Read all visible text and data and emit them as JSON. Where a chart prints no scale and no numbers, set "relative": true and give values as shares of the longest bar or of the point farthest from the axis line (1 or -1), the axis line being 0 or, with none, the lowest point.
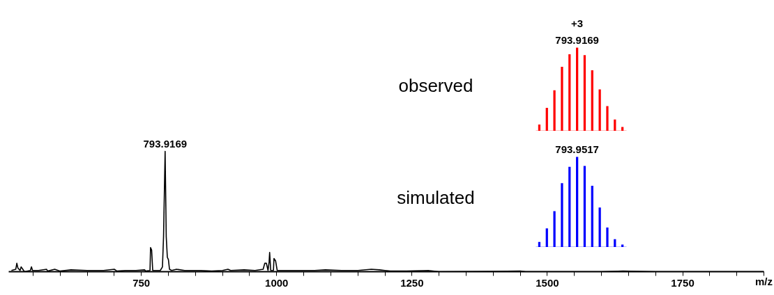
{
  "chart_data": [
    {
      "type": "line",
      "relative": true,
      "xlabel": "m/z",
      "xlim": [
        505,
        1900
      ],
      "xticks": [
        {
          "value": 550,
          "label": null
        },
        {
          "value": 600,
          "label": null
        },
        {
          "value": 650,
          "label": null
        },
        {
          "value": 700,
          "label": null
        },
        750,
        {
          "value": 800,
          "label": null
        },
        {
          "value": 850,
          "label": null
        },
        {
          "value": 900,
          "label": null
        },
        {
          "value": 950,
          "label": null
        },
        1000,
        {
          "value": 1050,
          "label": null
        },
        {
          "value": 1100,
          "label": null
        },
        {
          "value": 1150,
          "label": null
        },
        {
          "value": 1200,
          "label": null
        },
        1250,
        {
          "value": 1300,
          "label": null
        },
        {
          "value": 1350,
          "label": null
        },
        {
          "value": 1400,
          "label": null
        },
        {
          "value": 1450,
          "label": null
        },
        1500,
        {
          "value": 1550,
          "label": null
        },
        {
          "value": 1600,
          "label": null
        },
        {
          "value": 1650,
          "label": null
        },
        {
          "value": 1700,
          "label": null
        },
        1750,
        {
          "value": 1800,
          "label": null
        },
        {
          "value": 1850,
          "label": null
        },
        {
          "value": 1900,
          "label": null
        }
      ],
      "x": [
        510,
        518,
        520,
        522,
        526,
        528,
        531,
        534,
        545,
        547,
        549,
        560,
        575,
        577,
        590,
        600,
        620,
        650,
        680,
        700,
        705,
        720,
        740,
        756,
        758,
        766,
        767,
        769,
        771,
        785,
        789,
        791,
        793.9169,
        796,
        798,
        800,
        802,
        806,
        815,
        830,
        860,
        880,
        900,
        910,
        915,
        940,
        960,
        975,
        978,
        981,
        984,
        986,
        987,
        989,
        994,
        995,
        998,
        1001,
        1004,
        1010,
        1040,
        1070,
        1090,
        1120,
        1150,
        1175,
        1190,
        1200,
        1210,
        1240,
        1280,
        1300,
        1400,
        1450,
        1460,
        1600,
        1640,
        1700,
        1900
      ],
      "series": [
        {
          "color": "#000000",
          "values": [
            0.01,
            0.02,
            0.07,
            0.03,
            0.01,
            0.04,
            0.02,
            0.0,
            0.01,
            0.04,
            0.01,
            0.01,
            0.02,
            0.005,
            0.02,
            0.005,
            0.015,
            0.01,
            0.01,
            0.02,
            0.005,
            0.01,
            0.01,
            0.015,
            0.005,
            0.01,
            0.2,
            0.18,
            0.01,
            0.01,
            0.04,
            0.29,
            1.0,
            0.29,
            0.12,
            0.1,
            0.02,
            0.01,
            0.02,
            0.01,
            0.01,
            0.005,
            0.01,
            0.02,
            0.01,
            0.015,
            0.01,
            0.02,
            0.07,
            0.07,
            0.01,
            0.08,
            0.16,
            0.01,
            0.01,
            0.11,
            0.09,
            0.01,
            0.01,
            0.01,
            0.01,
            0.01,
            0.015,
            0.01,
            0.01,
            0.02,
            0.015,
            0.01,
            0.005,
            0.005,
            0.01,
            0.0,
            0.003,
            0.005,
            0.0,
            0.0,
            0.005,
            0.0,
            0.0
          ]
        }
      ],
      "annotations": [
        {
          "text": "793.9169",
          "x": 793.9169,
          "y": 1.0
        }
      ]
    },
    {
      "type": "bar",
      "relative": true,
      "categories": [
        null,
        null,
        null,
        null,
        null,
        null,
        null,
        null,
        null,
        null,
        null,
        null
      ],
      "series": [
        {
          "name": "observed",
          "color": "#ff0000",
          "values": [
            0.08,
            0.28,
            0.49,
            0.77,
            0.92,
            1.0,
            0.91,
            0.73,
            0.5,
            0.3,
            0.14,
            0.05
          ]
        }
      ],
      "annotations": [
        "+3",
        "793.9169"
      ]
    },
    {
      "type": "bar",
      "relative": true,
      "categories": [
        null,
        null,
        null,
        null,
        null,
        null,
        null,
        null,
        null,
        null,
        null,
        null
      ],
      "series": [
        {
          "name": "simulated",
          "color": "#0000ff",
          "values": [
            0.06,
            0.21,
            0.4,
            0.71,
            0.89,
            1.0,
            0.9,
            0.68,
            0.44,
            0.22,
            0.09,
            0.03
          ]
        }
      ],
      "annotations": [
        "793.9517"
      ]
    }
  ]
}
